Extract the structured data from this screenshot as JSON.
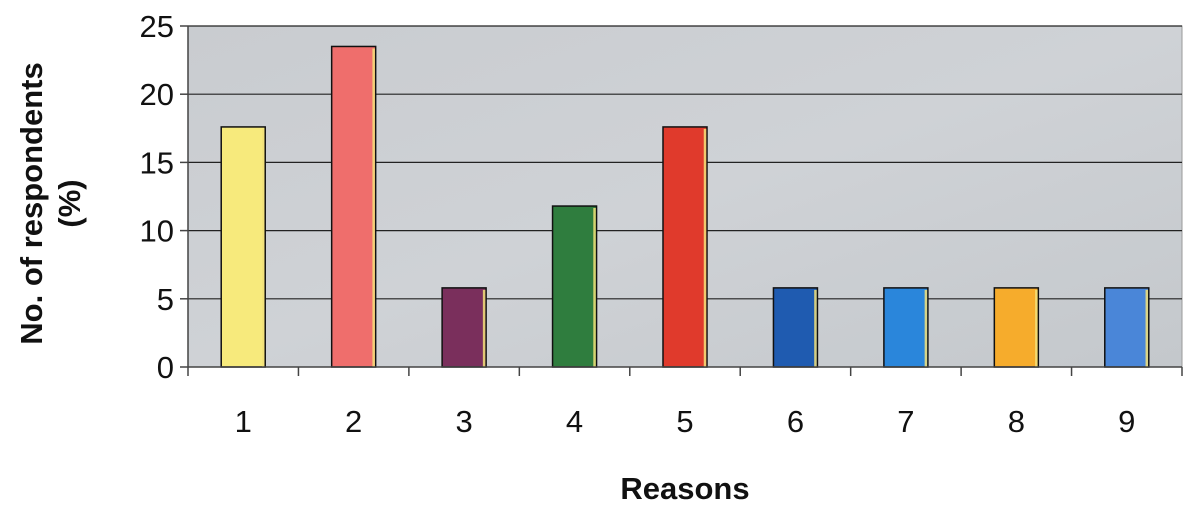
{
  "chart_data": {
    "type": "bar",
    "categories": [
      "1",
      "2",
      "3",
      "4",
      "5",
      "6",
      "7",
      "8",
      "9"
    ],
    "values": [
      17.6,
      23.5,
      5.8,
      11.8,
      17.6,
      5.8,
      5.8,
      5.8,
      5.8
    ],
    "bar_colors": [
      "#f7ea7c",
      "#ef6e6c",
      "#7a2f5c",
      "#2f7d3e",
      "#e03a2c",
      "#1f5bb0",
      "#2a86db",
      "#f6ac2c",
      "#4a86d8"
    ],
    "xlabel": "Reasons",
    "ylabel_lines": [
      "No. of respondents",
      "(%)"
    ],
    "ylim": [
      0,
      25
    ],
    "yticks": [
      0,
      5,
      10,
      15,
      20,
      25
    ],
    "grid": true,
    "legend": "none",
    "plot_background": "#c8ccd0",
    "gridline_color": "#222222"
  }
}
